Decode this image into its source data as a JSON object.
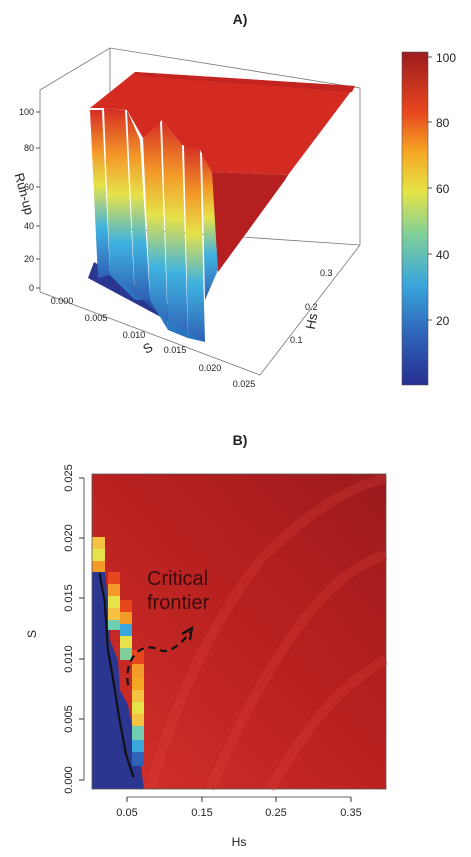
{
  "panel_a": {
    "title": "A)",
    "colorbar_ticks": [
      "100",
      "80",
      "60",
      "40",
      "20"
    ],
    "zlabel": "Run-up",
    "z_ticks": [
      "100",
      "80",
      "60",
      "40",
      "20",
      "0"
    ],
    "xlabel": "S",
    "x_ticks": [
      "0.000",
      "0.005",
      "0.010",
      "0.015",
      "0.020",
      "0.025"
    ],
    "ylabel": "Hs",
    "y_ticks": [
      "0.1",
      "0.2",
      "0.3"
    ]
  },
  "panel_b": {
    "title": "B)",
    "xlabel": "Hs",
    "ylabel": "S",
    "x_ticks": [
      "0.05",
      "0.15",
      "0.25",
      "0.35"
    ],
    "y_ticks": [
      "0.025",
      "0.020",
      "0.015",
      "0.010",
      "0.005",
      "0.000"
    ],
    "annotation_line1": "Critical",
    "annotation_line2": "frontier"
  },
  "colors": {
    "low": "#2b3a8f",
    "high": "#c0201b",
    "plateau": "#d32a22"
  },
  "chart_data": [
    {
      "type": "surface3d",
      "title": "A)",
      "xlabel": "S",
      "ylabel": "Hs",
      "zlabel": "Run-up",
      "xlim": [
        0,
        0.025
      ],
      "ylim": [
        0,
        0.35
      ],
      "zlim": [
        0,
        100
      ],
      "colorbar": {
        "range": [
          0,
          100
        ],
        "ticks": [
          20,
          40,
          60,
          80,
          100
        ]
      },
      "z_approx": "near 0 for small S and small Hs; abrupt jump to about 90-100 beyond a critical frontier"
    },
    {
      "type": "heatmap",
      "title": "B)",
      "xlabel": "Hs",
      "ylabel": "S",
      "xlim": [
        0,
        0.39
      ],
      "ylim": [
        -0.001,
        0.026
      ],
      "x_ticks": [
        0.05,
        0.15,
        0.25,
        0.35
      ],
      "y_ticks": [
        0,
        0.005,
        0.01,
        0.015,
        0.02,
        0.025
      ],
      "critical_frontier": [
        {
          "s": 0.0175,
          "hs": 0.01
        },
        {
          "s": 0.015,
          "hs": 0.017
        },
        {
          "s": 0.011,
          "hs": 0.021
        },
        {
          "s": 0.008,
          "hs": 0.029
        },
        {
          "s": 0.0055,
          "hs": 0.035
        },
        {
          "s": 0.002,
          "hs": 0.045
        },
        {
          "s": 0.0,
          "hs": 0.055
        }
      ],
      "annotation": "Critical frontier"
    }
  ]
}
